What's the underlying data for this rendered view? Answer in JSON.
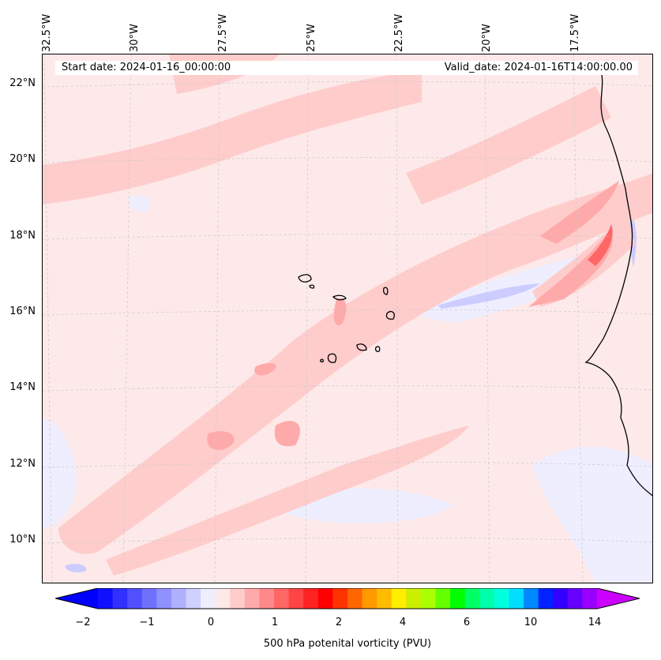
{
  "map": {
    "start_label": "Start date: 2024-01-16_00:00:00",
    "valid_label": "Valid_date: 2024-01-16T14:00:00.00",
    "lon_labels": [
      "32.5°W",
      "30°W",
      "27.5°W",
      "25°W",
      "22.5°W",
      "20°W",
      "17.5°W"
    ],
    "lat_labels": [
      "22°N",
      "20°N",
      "18°N",
      "16°N",
      "14°N",
      "12°N",
      "10°N"
    ],
    "field": "500 hPa potenital vorticity",
    "colors": {
      "background": "#fde9e9",
      "light_red": "#ffcccc",
      "medium_red": "#ffaaaa",
      "strong_red": "#ff6666",
      "light_blue": "#eeeeff",
      "blue": "#ccccff",
      "coast": "#000000",
      "gridline": "#c8c8c8"
    }
  },
  "colorbar": {
    "label": "500 hPa potenital vorticity (PVU)",
    "ticks": [
      "−2",
      "−1",
      "0",
      "1",
      "2",
      "4",
      "6",
      "10",
      "14"
    ],
    "colors": [
      "#1010ff",
      "#3030ff",
      "#5050ff",
      "#7070ff",
      "#9090ff",
      "#b0b0ff",
      "#d0d0ff",
      "#eeeeff",
      "#ffe8e8",
      "#ffcccc",
      "#ffaaaa",
      "#ff8888",
      "#ff6666",
      "#ff4444",
      "#ff2222",
      "#ff0000",
      "#ff3300",
      "#ff6600",
      "#ff9900",
      "#ffbb00",
      "#ffee00",
      "#ccee00",
      "#aaff00",
      "#66ff00",
      "#00ff00",
      "#00ff66",
      "#00ffaa",
      "#00ffdd",
      "#00ddff",
      "#0088ff",
      "#0022ff",
      "#3300ff",
      "#6600ff",
      "#9900ff"
    ],
    "min_arrow_color": "#0000ff",
    "max_arrow_color": "#cc00ff"
  }
}
